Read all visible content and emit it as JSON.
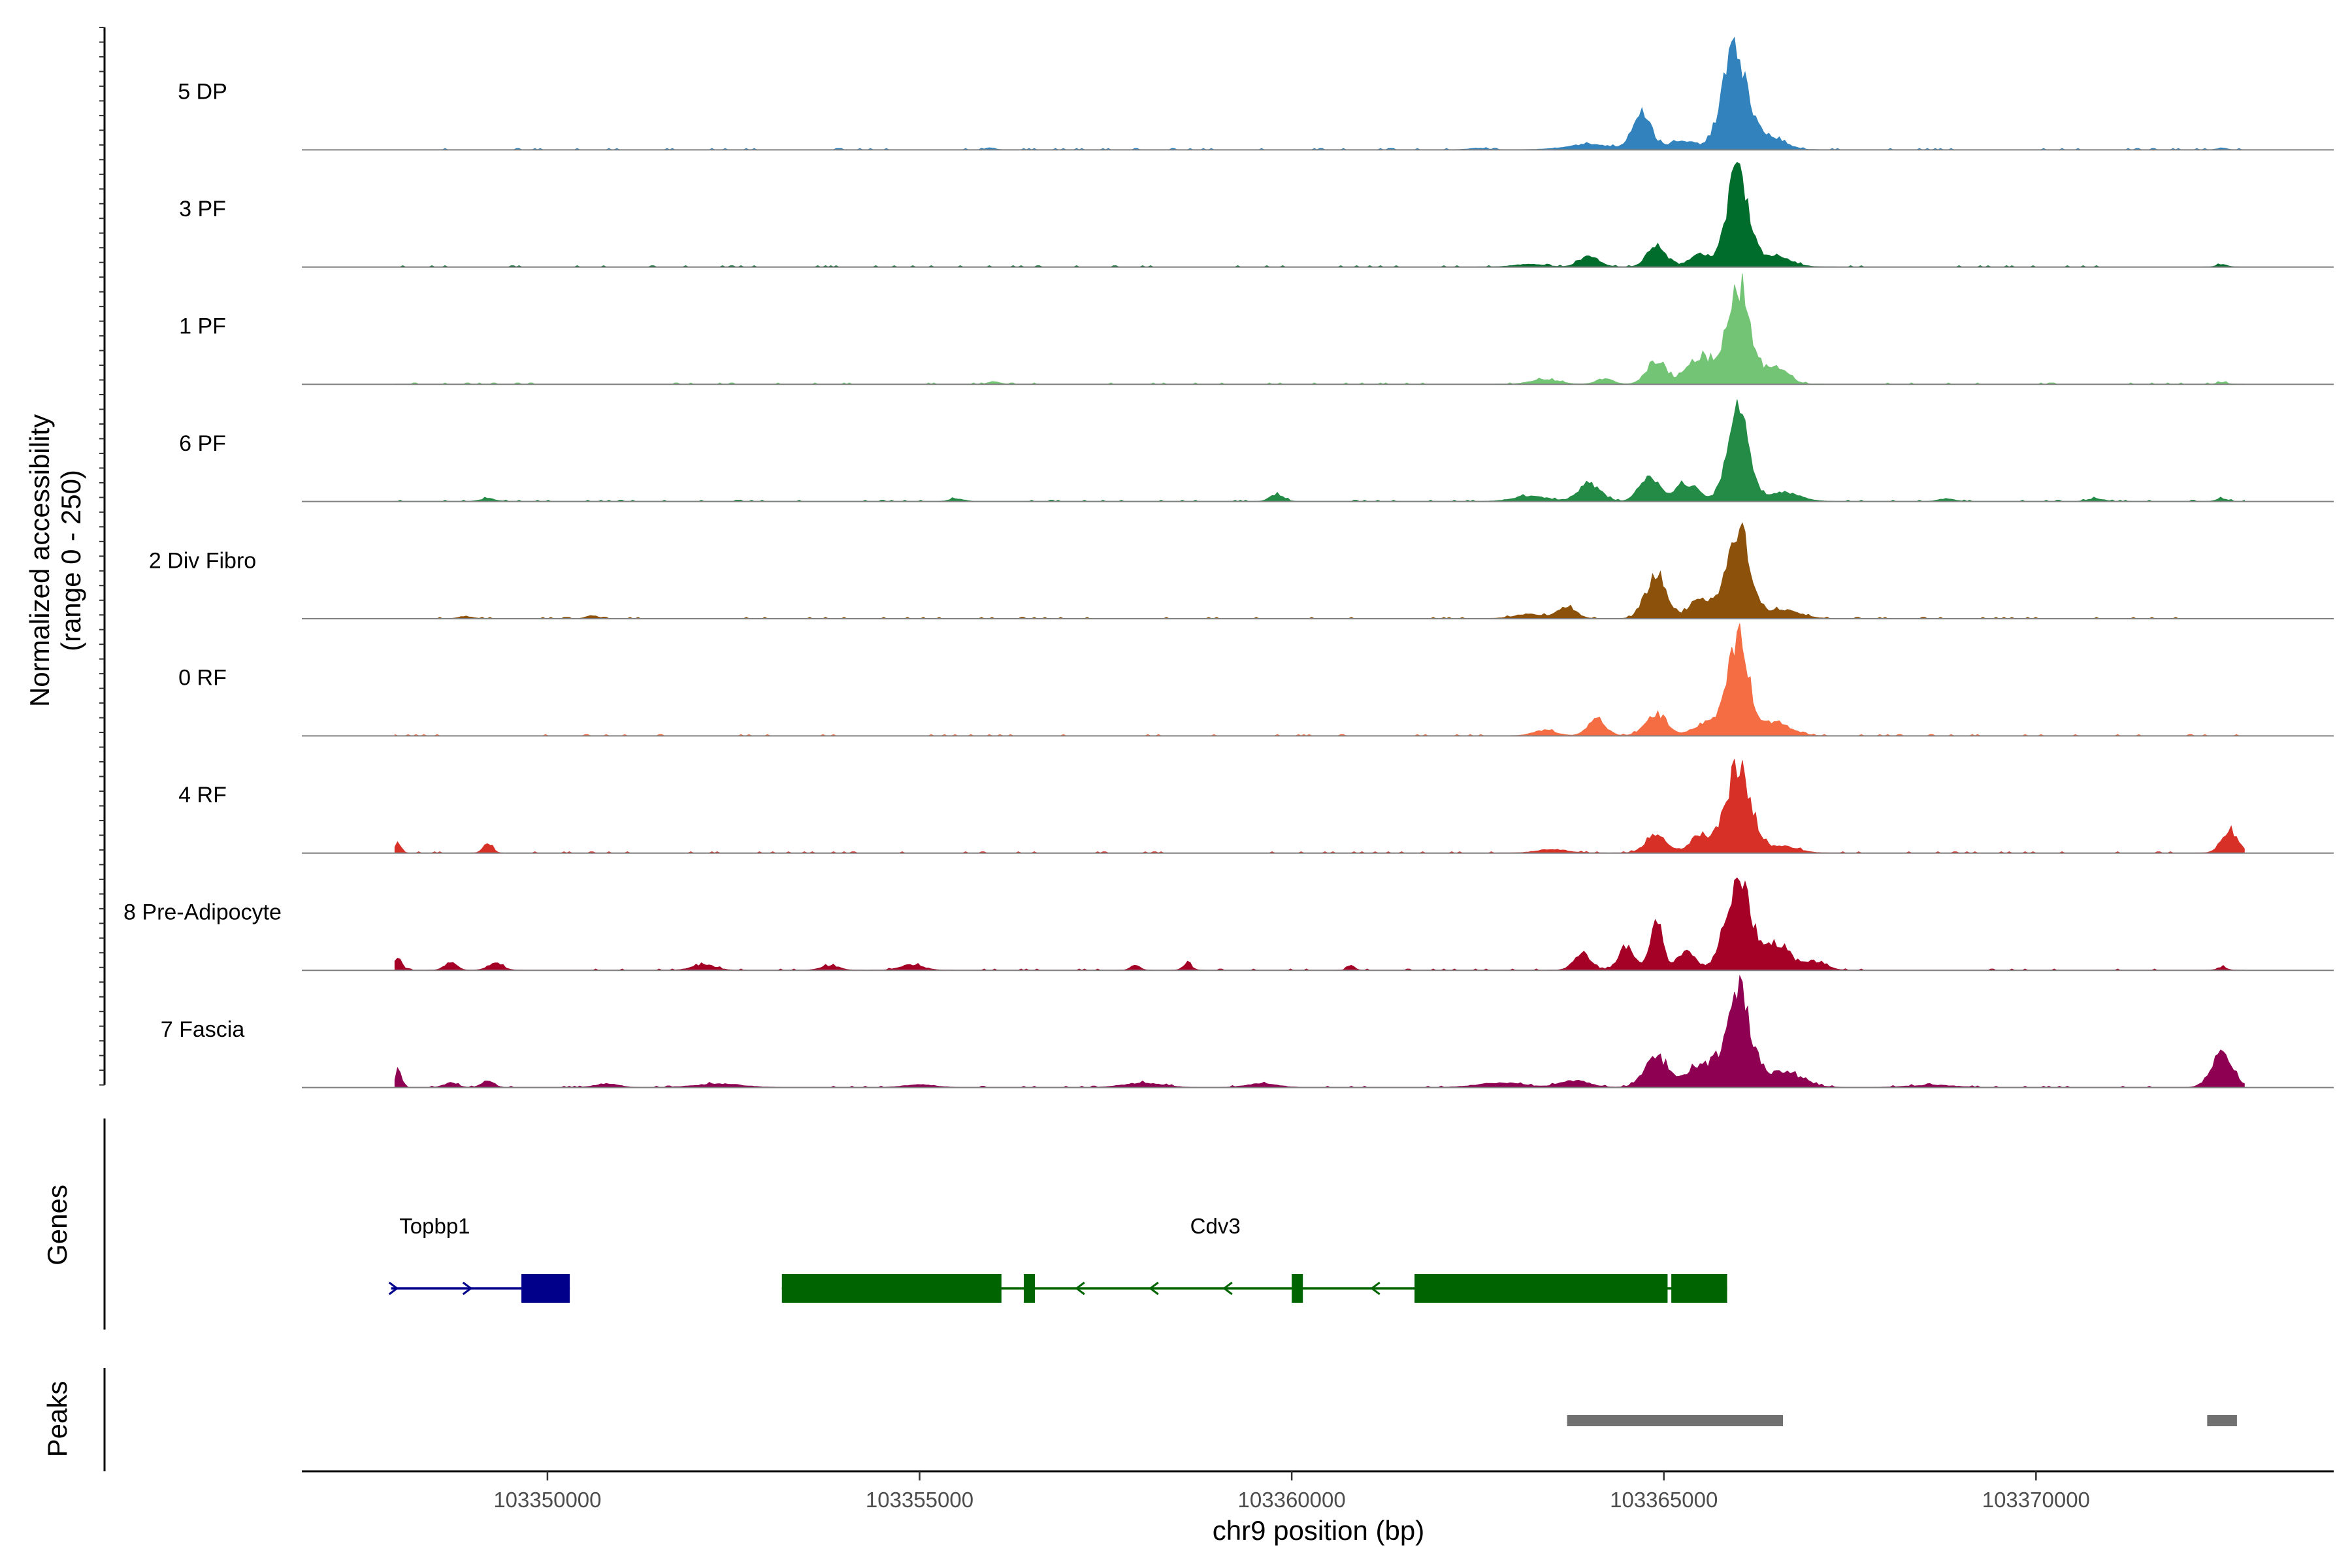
{
  "chart_data": {
    "type": "area",
    "title": "",
    "xlabel": "chr9 position (bp)",
    "ylabel": [
      "Normalized accessibility",
      "(range 0 - 250)"
    ],
    "xlim": [
      103346700,
      103374000
    ],
    "ylim": [
      0,
      250
    ],
    "x_ticks": [
      103350000,
      103355000,
      103360000,
      103365000,
      103370000
    ],
    "x_tick_labels": [
      "103350000",
      "103355000",
      "103360000",
      "103365000",
      "103370000"
    ],
    "panel_labels": {
      "genes": "Genes",
      "peaks": "Peaks"
    },
    "tracks": [
      {
        "name": "5 DP",
        "color": "#3182bd",
        "peaks": [
          [
            103355950,
            4,
            60
          ],
          [
            103362500,
            3,
            120
          ],
          [
            103364000,
            12,
            300
          ],
          [
            103364700,
            85,
            120
          ],
          [
            103365250,
            18,
            220
          ],
          [
            103365950,
            225,
            160
          ],
          [
            103366400,
            30,
            200
          ],
          [
            103372500,
            4,
            60
          ]
        ]
      },
      {
        "name": "3 PF",
        "color": "#006d2c",
        "peaks": [
          [
            103363200,
            6,
            200
          ],
          [
            103364000,
            25,
            130
          ],
          [
            103364900,
            50,
            120
          ],
          [
            103365500,
            30,
            150
          ],
          [
            103366000,
            215,
            140
          ],
          [
            103366500,
            25,
            200
          ],
          [
            103372500,
            5,
            70
          ]
        ]
      },
      {
        "name": "1 PF",
        "color": "#74c476",
        "peaks": [
          [
            103356000,
            6,
            70
          ],
          [
            103363400,
            10,
            180
          ],
          [
            103364200,
            12,
            110
          ],
          [
            103364900,
            50,
            130
          ],
          [
            103365500,
            60,
            180
          ],
          [
            103366000,
            220,
            150
          ],
          [
            103366500,
            40,
            160
          ],
          [
            103372500,
            4,
            60
          ]
        ]
      },
      {
        "name": "6 PF",
        "color": "#238b45",
        "peaks": [
          [
            103349200,
            6,
            100
          ],
          [
            103355500,
            6,
            90
          ],
          [
            103359800,
            15,
            90
          ],
          [
            103363200,
            12,
            220
          ],
          [
            103364000,
            38,
            150
          ],
          [
            103364800,
            55,
            130
          ],
          [
            103365300,
            40,
            160
          ],
          [
            103366000,
            210,
            140
          ],
          [
            103366600,
            20,
            220
          ],
          [
            103368800,
            6,
            100
          ],
          [
            103370800,
            6,
            100
          ],
          [
            103372500,
            6,
            70
          ]
        ]
      },
      {
        "name": "2 Div Fibro",
        "color": "#8c510a",
        "peaks": [
          [
            103348900,
            5,
            80
          ],
          [
            103350600,
            7,
            70
          ],
          [
            103363200,
            10,
            200
          ],
          [
            103363700,
            25,
            120
          ],
          [
            103364900,
            95,
            140
          ],
          [
            103365500,
            45,
            150
          ],
          [
            103366000,
            190,
            160
          ],
          [
            103366600,
            20,
            220
          ]
        ]
      },
      {
        "name": "0 RF",
        "color": "#f46d43",
        "peaks": [
          [
            103363400,
            12,
            150
          ],
          [
            103364100,
            35,
            120
          ],
          [
            103364900,
            45,
            150
          ],
          [
            103365600,
            30,
            180
          ],
          [
            103366000,
            210,
            140
          ],
          [
            103366500,
            30,
            200
          ]
        ]
      },
      {
        "name": "4 RF",
        "color": "#d73027",
        "peaks": [
          [
            103348000,
            20,
            40
          ],
          [
            103349200,
            22,
            60
          ],
          [
            103363500,
            8,
            200
          ],
          [
            103364900,
            40,
            140
          ],
          [
            103365500,
            35,
            150
          ],
          [
            103366000,
            185,
            170
          ],
          [
            103366600,
            15,
            200
          ],
          [
            103372600,
            50,
            110
          ]
        ]
      },
      {
        "name": "8 Pre-Adipocyte",
        "color": "#a50026",
        "peaks": [
          [
            103348000,
            25,
            50
          ],
          [
            103348700,
            18,
            80
          ],
          [
            103349300,
            15,
            100
          ],
          [
            103352100,
            12,
            150
          ],
          [
            103353800,
            10,
            120
          ],
          [
            103354900,
            12,
            150
          ],
          [
            103357900,
            12,
            60
          ],
          [
            103358600,
            15,
            60
          ],
          [
            103360800,
            10,
            50
          ],
          [
            103363900,
            40,
            110
          ],
          [
            103364500,
            50,
            110
          ],
          [
            103364900,
            120,
            80
          ],
          [
            103365300,
            40,
            130
          ],
          [
            103366000,
            190,
            170
          ],
          [
            103366500,
            60,
            170
          ],
          [
            103367000,
            20,
            160
          ],
          [
            103372500,
            7,
            60
          ]
        ]
      },
      {
        "name": "7 Fascia",
        "color": "#8e0152",
        "peaks": [
          [
            103348000,
            45,
            40
          ],
          [
            103348700,
            10,
            90
          ],
          [
            103349200,
            15,
            80
          ],
          [
            103350800,
            8,
            150
          ],
          [
            103352300,
            8,
            300
          ],
          [
            103355000,
            6,
            200
          ],
          [
            103358000,
            10,
            250
          ],
          [
            103359600,
            8,
            200
          ],
          [
            103362800,
            10,
            300
          ],
          [
            103363800,
            15,
            200
          ],
          [
            103364900,
            65,
            160
          ],
          [
            103365500,
            50,
            200
          ],
          [
            103366000,
            210,
            160
          ],
          [
            103366600,
            35,
            250
          ],
          [
            103368600,
            5,
            300
          ],
          [
            103372500,
            75,
            140
          ]
        ]
      }
    ],
    "genes": [
      {
        "name": "Topbp1",
        "strand": "+",
        "color": "#00008b",
        "start": 103347900,
        "end": 103350300,
        "exons": [
          [
            103349650,
            103350300
          ]
        ]
      },
      {
        "name": "Cdv3",
        "strand": "-",
        "color": "#006400",
        "start": 103353150,
        "end": 103365850,
        "exons": [
          [
            103353150,
            103356100
          ],
          [
            103356400,
            103356550
          ],
          [
            103360000,
            103360150
          ],
          [
            103361650,
            103365050
          ],
          [
            103365100,
            103365850
          ]
        ]
      }
    ],
    "peaks_track": {
      "color": "#707070",
      "regions": [
        [
          103363700,
          103366600
        ],
        [
          103372300,
          103372700
        ]
      ]
    }
  }
}
